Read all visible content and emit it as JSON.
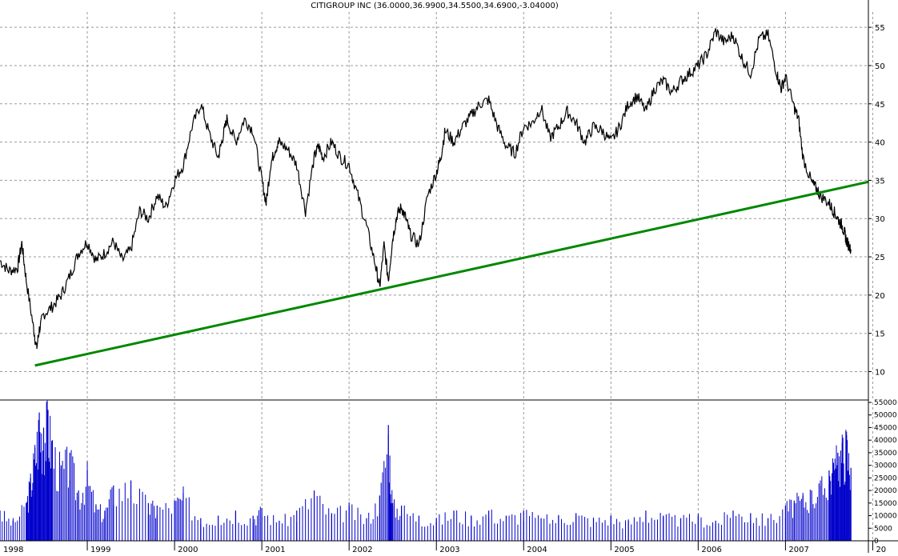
{
  "chart_data": [
    {
      "type": "line",
      "title": "CITIGROUP INC (36.0000,36.9900,34.5500,34.6900,-3.04000)",
      "xlabel": "",
      "ylabel": "",
      "x_ticks": [
        "1998",
        "1999",
        "2000",
        "2001",
        "2002",
        "2003",
        "2004",
        "2005",
        "2006",
        "2007",
        "20"
      ],
      "y_ticks": [
        10,
        15,
        20,
        25,
        30,
        35,
        40,
        45,
        50,
        55
      ],
      "xlim": [
        1998.0,
        2007.95
      ],
      "ylim": [
        6.5,
        57
      ],
      "grid": true,
      "series": [
        {
          "color": "#000000",
          "x": [
            1998.0,
            1998.1,
            1998.2,
            1998.25,
            1998.3,
            1998.38,
            1998.42,
            1998.45,
            1998.5,
            1998.6,
            1998.7,
            1998.8,
            1998.9,
            1999.0,
            1999.1,
            1999.2,
            1999.3,
            1999.4,
            1999.5,
            1999.6,
            1999.7,
            1999.8,
            1999.9,
            2000.0,
            2000.1,
            2000.2,
            2000.3,
            2000.4,
            2000.5,
            2000.55,
            2000.6,
            2000.7,
            2000.8,
            2000.9,
            2001.0,
            2001.05,
            2001.1,
            2001.15,
            2001.2,
            2001.3,
            2001.4,
            2001.5,
            2001.6,
            2001.65,
            2001.7,
            2001.8,
            2001.9,
            2002.0,
            2002.1,
            2002.2,
            2002.3,
            2002.35,
            2002.4,
            2002.45,
            2002.5,
            2002.55,
            2002.6,
            2002.65,
            2002.7,
            2002.8,
            2002.9,
            2003.0,
            2003.05,
            2003.1,
            2003.2,
            2003.3,
            2003.4,
            2003.5,
            2003.6,
            2003.7,
            2003.8,
            2003.9,
            2004.0,
            2004.1,
            2004.2,
            2004.3,
            2004.4,
            2004.5,
            2004.6,
            2004.7,
            2004.8,
            2004.9,
            2005.0,
            2005.1,
            2005.2,
            2005.3,
            2005.4,
            2005.5,
            2005.6,
            2005.7,
            2005.8,
            2005.9,
            2006.0,
            2006.1,
            2006.2,
            2006.3,
            2006.4,
            2006.5,
            2006.6,
            2006.7,
            2006.8,
            2006.9,
            2006.95,
            2007.0,
            2007.1,
            2007.15,
            2007.2,
            2007.3,
            2007.35,
            2007.4,
            2007.5,
            2007.55,
            2007.6,
            2007.65,
            2007.68,
            2007.7,
            2007.75
          ],
          "values": [
            24.5,
            23.2,
            23.5,
            26.8,
            22.0,
            16.0,
            13.0,
            15.5,
            17.5,
            18.5,
            20.0,
            22.5,
            25.5,
            27.0,
            24.5,
            25.5,
            27.0,
            24.5,
            26.0,
            31.0,
            30.0,
            33.0,
            31.5,
            35.0,
            37.0,
            42.0,
            45.0,
            41.0,
            38.0,
            40.5,
            43.0,
            40.0,
            43.0,
            41.5,
            35.0,
            32.0,
            37.0,
            39.0,
            40.0,
            39.0,
            37.0,
            31.0,
            38.0,
            39.5,
            38.0,
            40.0,
            38.0,
            37.0,
            33.0,
            29.0,
            24.0,
            21.0,
            26.5,
            22.0,
            27.5,
            30.5,
            31.5,
            30.0,
            28.0,
            26.5,
            33.0,
            36.0,
            38.0,
            41.5,
            40.0,
            42.0,
            43.5,
            45.0,
            45.5,
            42.0,
            39.5,
            38.5,
            42.0,
            42.5,
            44.5,
            40.5,
            42.0,
            44.0,
            42.5,
            40.0,
            42.0,
            41.5,
            40.0,
            42.0,
            45.0,
            46.0,
            44.0,
            47.0,
            48.0,
            46.5,
            48.0,
            49.0,
            50.0,
            51.5,
            54.5,
            53.0,
            54.0,
            51.0,
            49.0,
            53.5,
            54.0,
            49.0,
            47.0,
            48.5,
            44.5,
            43.0,
            38.0,
            34.7,
            34.0,
            33.0,
            32.0,
            31.0,
            30.0,
            29.0,
            28.0,
            27.0,
            26.0
          ]
        },
        {
          "color": "#008800",
          "x": [
            1998.4,
            2008.0
          ],
          "values": [
            10.8,
            34.8
          ]
        }
      ]
    },
    {
      "type": "bar",
      "title": "",
      "x_ticks": [
        "1998",
        "1999",
        "2000",
        "2001",
        "2002",
        "2003",
        "2004",
        "2005",
        "2006",
        "2007",
        "20"
      ],
      "y_ticks": [
        "55000",
        "50000",
        "45000",
        "40000",
        "35000",
        "30000",
        "25000",
        "20000",
        "15000",
        "10000",
        "5000",
        "0"
      ],
      "ylim": [
        0,
        55000
      ],
      "series": [
        {
          "color": "#0000cc",
          "x": [
            1998.0,
            1998.15,
            1998.3,
            1998.35,
            1998.4,
            1998.45,
            1998.5,
            1998.55,
            1998.6,
            1998.7,
            1998.8,
            1998.9,
            1999.0,
            1999.1,
            1999.2,
            1999.3,
            1999.5,
            1999.7,
            1999.8,
            2000.0,
            2000.1,
            2000.3,
            2000.5,
            2000.7,
            2000.9,
            2001.0,
            2001.2,
            2001.4,
            2001.6,
            2001.8,
            2002.0,
            2002.2,
            2002.35,
            2002.45,
            2002.5,
            2002.6,
            2002.8,
            2003.0,
            2003.2,
            2003.4,
            2003.6,
            2003.8,
            2004.0,
            2004.2,
            2004.4,
            2004.6,
            2004.8,
            2005.0,
            2005.2,
            2005.4,
            2005.6,
            2005.8,
            2006.0,
            2006.2,
            2006.4,
            2006.6,
            2006.8,
            2007.0,
            2007.1,
            2007.2,
            2007.3,
            2007.4,
            2007.5,
            2007.55,
            2007.6,
            2007.65,
            2007.7,
            2007.75
          ],
          "values": [
            12000,
            8000,
            15000,
            25000,
            37000,
            51000,
            45000,
            52000,
            40000,
            30000,
            35000,
            20000,
            28000,
            14000,
            12000,
            22000,
            24000,
            15000,
            14000,
            16000,
            19000,
            9000,
            10000,
            12000,
            10000,
            13000,
            8000,
            12000,
            20000,
            11000,
            14000,
            9000,
            18000,
            46000,
            15000,
            14000,
            10000,
            9000,
            12000,
            10000,
            12000,
            10000,
            12000,
            9000,
            10000,
            11000,
            9000,
            10000,
            8000,
            12000,
            10000,
            9000,
            10000,
            8000,
            12000,
            11000,
            9000,
            14000,
            16000,
            18000,
            20000,
            22000,
            28000,
            31000,
            35000,
            39000,
            42000,
            29000
          ]
        }
      ]
    }
  ]
}
